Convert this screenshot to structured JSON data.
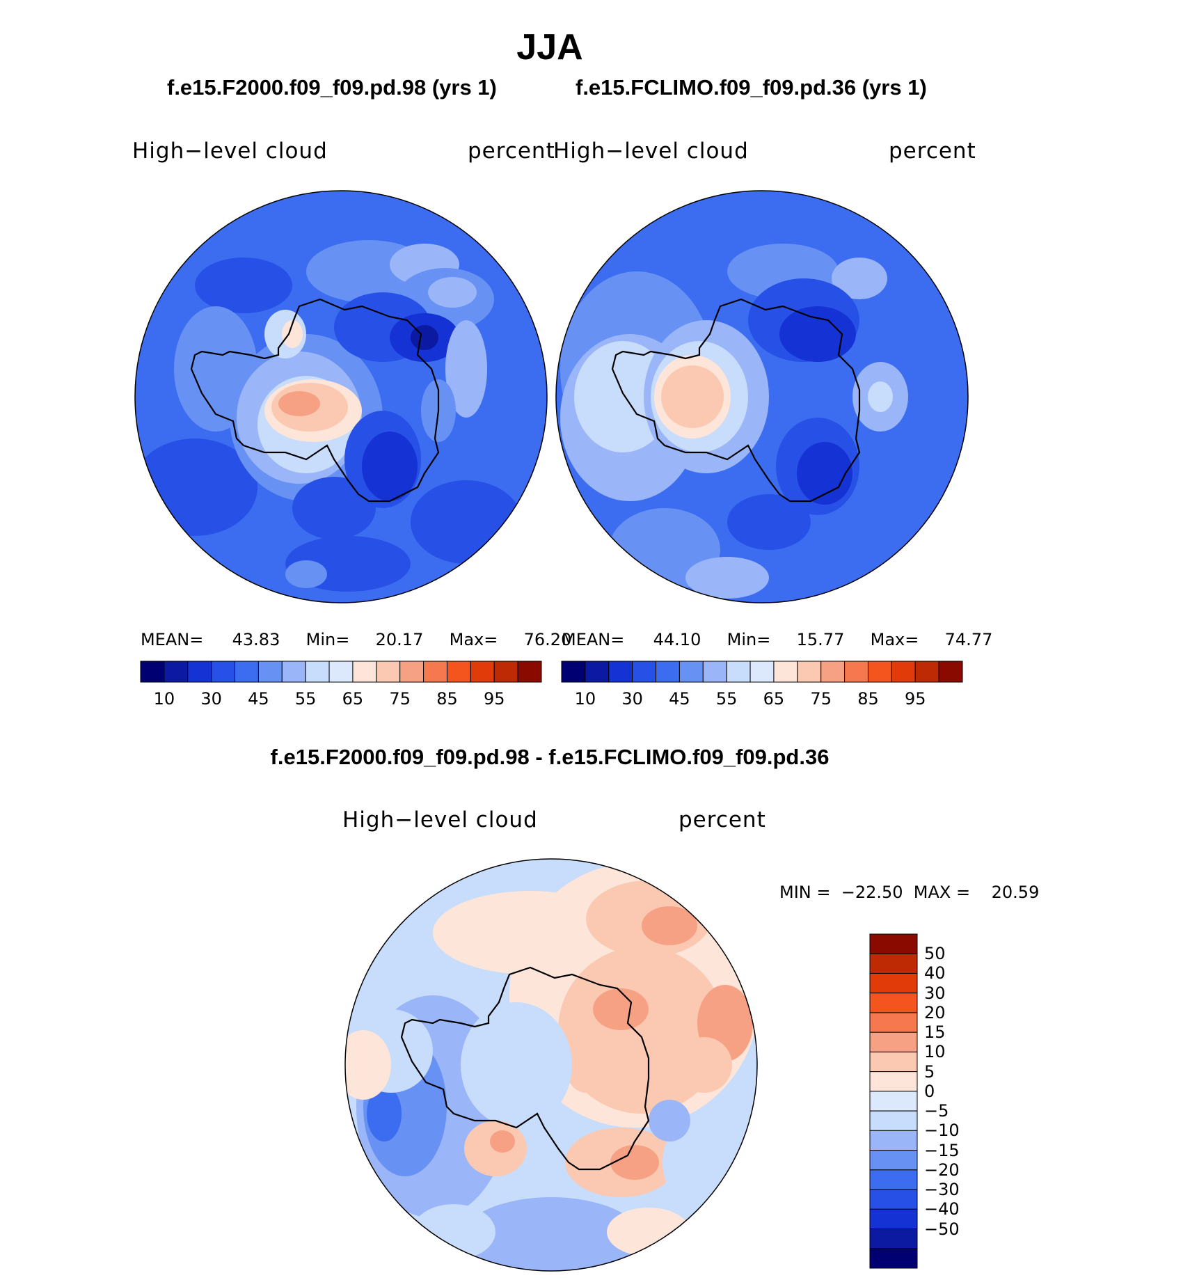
{
  "title": "JJA",
  "panels": [
    {
      "case": "f.e15.F2000.f09_f09.pd.98 (yrs 1)",
      "variable": "High−level  cloud",
      "units": "percent",
      "stats": {
        "mean_label": "MEAN=",
        "mean": "43.83",
        "min_label": "Min=",
        "min": "20.17",
        "max_label": "Max=",
        "max": "76.20"
      }
    },
    {
      "case": "f.e15.FCLIMO.f09_f09.pd.36 (yrs 1)",
      "variable": "High−level  cloud",
      "units": "percent",
      "stats": {
        "mean_label": "MEAN=",
        "mean": "44.10",
        "min_label": "Min=",
        "min": "15.77",
        "max_label": "Max=",
        "max": "74.77"
      }
    }
  ],
  "difference": {
    "case": "f.e15.F2000.f09_f09.pd.98 - f.e15.FCLIMO.f09_f09.pd.36",
    "variable": "High−level  cloud",
    "units": "percent",
    "minmax": "MIN =  −22.50  MAX =    20.59"
  },
  "colorbar_abs": {
    "colors": [
      "#000073",
      "#0b1aa0",
      "#1532d4",
      "#2650e6",
      "#3c6df0",
      "#6792f4",
      "#9ab6f8",
      "#c8dcfb",
      "#dce9fd",
      "#fde6d9",
      "#fbc9b1",
      "#f6a184",
      "#f5784f",
      "#f4551f",
      "#e23b0a",
      "#bd2a04",
      "#8b0a00"
    ],
    "tick_labels": [
      "10",
      "30",
      "45",
      "55",
      "65",
      "75",
      "85",
      "95"
    ]
  },
  "colorbar_diff": {
    "colors": [
      "#000073",
      "#0b1aa0",
      "#1532d4",
      "#2650e6",
      "#3c6df0",
      "#6792f4",
      "#9ab6f8",
      "#c8dcfb",
      "#dce9fd",
      "#fde6d9",
      "#fbc9b1",
      "#f6a184",
      "#f5784f",
      "#f4551f",
      "#e23b0a",
      "#bd2a04",
      "#8b0a00"
    ],
    "tick_labels": [
      "50",
      "40",
      "30",
      "20",
      "15",
      "10",
      "5",
      "0",
      "−5",
      "−10",
      "−15",
      "−20",
      "−30",
      "−40",
      "−50"
    ]
  }
}
